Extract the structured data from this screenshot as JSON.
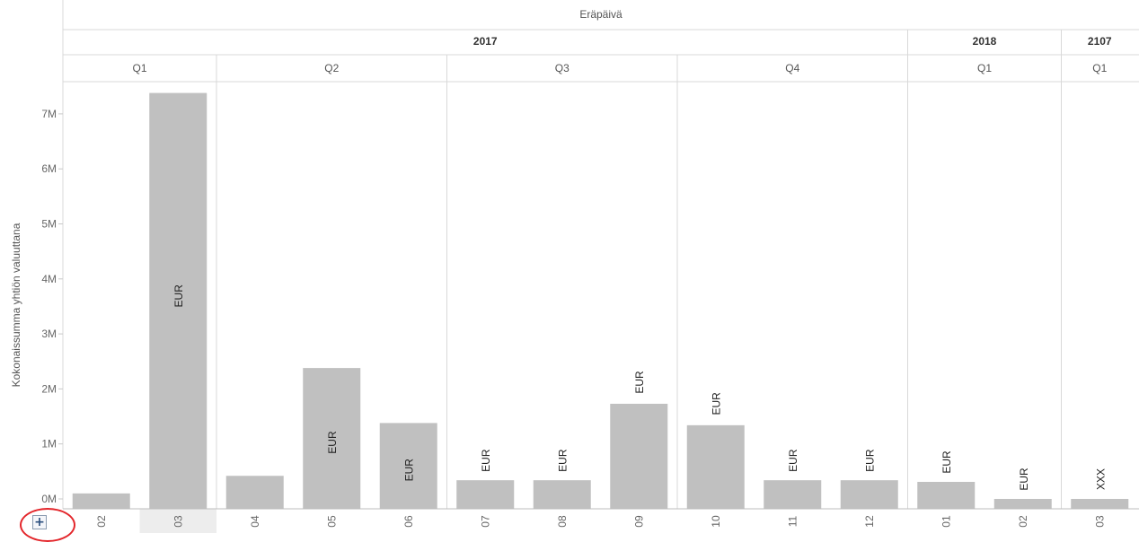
{
  "chart_data": {
    "type": "bar",
    "title": "",
    "xlabel": "Eräpäivä",
    "ylabel": "Kokonaissumma yhtiön valuuttana",
    "ylim": [
      0,
      7600000
    ],
    "yticks": [
      "0M",
      "1M",
      "2M",
      "3M",
      "4M",
      "5M",
      "6M",
      "7M"
    ],
    "ytick_values": [
      0,
      1000000,
      2000000,
      3000000,
      4000000,
      5000000,
      6000000,
      7000000
    ],
    "grid": false,
    "legend": "none",
    "years": [
      {
        "label": "2017",
        "quarters": [
          {
            "label": "Q1",
            "months": [
              "02",
              "03"
            ]
          },
          {
            "label": "Q2",
            "months": [
              "04",
              "05",
              "06"
            ]
          },
          {
            "label": "Q3",
            "months": [
              "07",
              "08",
              "09"
            ]
          },
          {
            "label": "Q4",
            "months": [
              "10",
              "11",
              "12"
            ]
          }
        ]
      },
      {
        "label": "2018",
        "quarters": [
          {
            "label": "Q1",
            "months": [
              "01",
              "02"
            ]
          }
        ]
      },
      {
        "label": "2107",
        "quarters": [
          {
            "label": "Q1",
            "months": [
              "03"
            ]
          }
        ]
      }
    ],
    "bars": [
      {
        "month": "02",
        "value": 100000,
        "label": ""
      },
      {
        "month": "03",
        "value": 7380000,
        "label": "EUR"
      },
      {
        "month": "04",
        "value": 420000,
        "label": ""
      },
      {
        "month": "05",
        "value": 2380000,
        "label": "EUR"
      },
      {
        "month": "06",
        "value": 1380000,
        "label": "EUR"
      },
      {
        "month": "07",
        "value": 340000,
        "label": "EUR"
      },
      {
        "month": "08",
        "value": 340000,
        "label": "EUR"
      },
      {
        "month": "09",
        "value": 1730000,
        "label": "EUR"
      },
      {
        "month": "10",
        "value": 1340000,
        "label": "EUR"
      },
      {
        "month": "11",
        "value": 340000,
        "label": "EUR"
      },
      {
        "month": "12",
        "value": 340000,
        "label": "EUR"
      },
      {
        "month": "01",
        "value": 310000,
        "label": "EUR"
      },
      {
        "month": "02",
        "value": 0,
        "label": "EUR"
      },
      {
        "month": "03",
        "value": 0,
        "label": "XXX"
      }
    ],
    "selected_index": 1,
    "bar_color": "#c0c0c0"
  },
  "controls": {
    "expand_icon": "plus-icon",
    "expand_glyph": "+",
    "highlight_color": "#e3262b"
  }
}
